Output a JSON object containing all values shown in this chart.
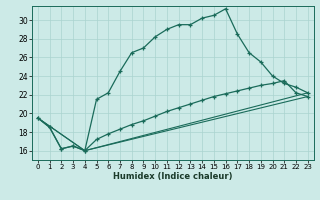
{
  "xlabel": "Humidex (Indice chaleur)",
  "bg_color": "#cceae7",
  "grid_color": "#aad4cf",
  "line_color": "#1a6b5a",
  "xmin": -0.5,
  "xmax": 23.5,
  "ymin": 15.0,
  "ymax": 31.5,
  "yticks": [
    16,
    18,
    20,
    22,
    24,
    26,
    28,
    30
  ],
  "xticks": [
    0,
    1,
    2,
    3,
    4,
    5,
    6,
    7,
    8,
    9,
    10,
    11,
    12,
    13,
    14,
    15,
    16,
    17,
    18,
    19,
    20,
    21,
    22,
    23
  ],
  "series1_x": [
    0,
    1,
    2,
    3,
    4,
    5,
    6,
    7,
    8,
    9,
    10,
    11,
    12,
    13,
    14,
    15,
    16,
    17,
    18,
    19,
    20,
    21,
    22,
    23
  ],
  "series1_y": [
    19.5,
    18.5,
    16.2,
    16.5,
    16.0,
    21.5,
    22.2,
    24.5,
    26.5,
    27.0,
    28.2,
    29.0,
    29.5,
    29.5,
    30.2,
    30.5,
    31.2,
    28.5,
    26.5,
    25.5,
    24.0,
    23.2,
    22.8,
    22.2
  ],
  "series2_x": [
    0,
    1,
    2,
    3,
    4,
    5,
    6,
    7,
    8,
    9,
    10,
    11,
    12,
    13,
    14,
    15,
    16,
    17,
    18,
    19,
    20,
    21,
    22,
    23
  ],
  "series2_y": [
    19.5,
    18.5,
    16.2,
    16.5,
    16.0,
    17.2,
    17.8,
    18.3,
    18.8,
    19.2,
    19.7,
    20.2,
    20.6,
    21.0,
    21.4,
    21.8,
    22.1,
    22.4,
    22.7,
    23.0,
    23.2,
    23.5,
    22.2,
    21.8
  ],
  "line3_x": [
    0,
    4,
    23
  ],
  "line3_y": [
    19.5,
    16.0,
    22.2
  ],
  "line4_x": [
    0,
    4,
    23
  ],
  "line4_y": [
    19.5,
    16.0,
    21.8
  ]
}
